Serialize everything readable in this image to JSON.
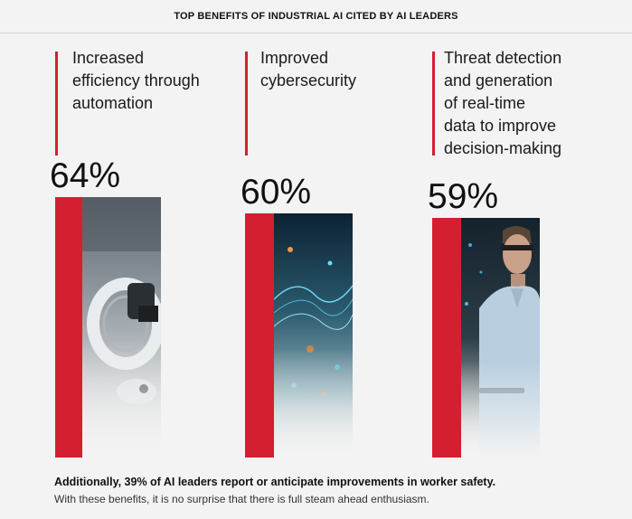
{
  "header": {
    "title": "TOP BENEFITS OF INDUSTRIAL AI CITED BY AI LEADERS"
  },
  "colors": {
    "accent": "#d41f30",
    "background": "#f3f3f3"
  },
  "chart_data": {
    "type": "bar",
    "title": "TOP BENEFITS OF INDUSTRIAL AI CITED BY AI LEADERS",
    "categories": [
      "Increased efficiency through automation",
      "Improved cybersecurity",
      "Threat detection and generation of real-time data to improve decision-making"
    ],
    "values": [
      64,
      60,
      59
    ],
    "value_labels": [
      "64%",
      "60%",
      "59%"
    ],
    "label_lines": [
      [
        "Increased",
        "efficiency through",
        "automation"
      ],
      [
        "Improved",
        "cybersecurity"
      ],
      [
        "Threat detection",
        "and generation",
        "of real-time",
        "data to improve",
        "decision-making"
      ]
    ],
    "unit": "%",
    "xlabel": "",
    "ylabel": ""
  },
  "footer": {
    "bold": "Additionally, 39% of AI leaders report or anticipate improvements in worker safety.",
    "regular": "With these benefits, it is no surprise that there is full steam ahead enthusiasm."
  }
}
